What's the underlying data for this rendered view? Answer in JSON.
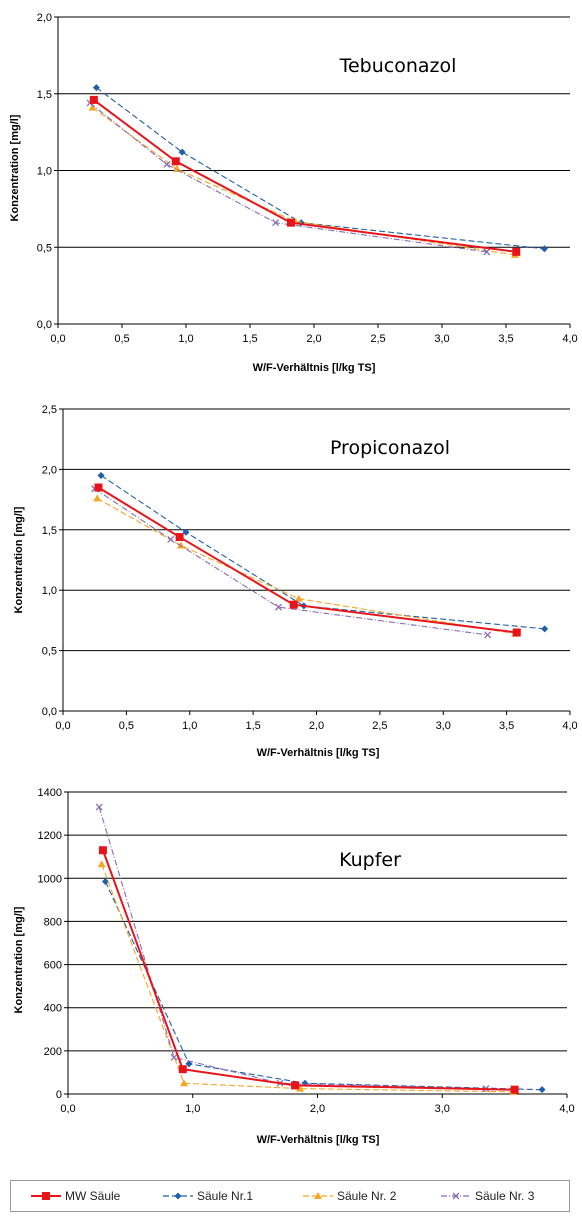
{
  "legend": [
    {
      "label": "MW Säule",
      "color": "#e8141b",
      "marker": "square",
      "dash": "solid"
    },
    {
      "label": "Säule Nr.1",
      "color": "#1f5fa8",
      "marker": "diamond",
      "dash": "dash"
    },
    {
      "label": "Säule Nr. 2",
      "color": "#f5a623",
      "marker": "triangle",
      "dash": "dash"
    },
    {
      "label": "Säule Nr. 3",
      "color": "#8a6bb5",
      "marker": "x",
      "dash": "dashdot"
    }
  ],
  "chart_data": [
    {
      "type": "line",
      "title": "Tebuconazol",
      "xlabel": "W/F-Verhältnis [l/kg TS]",
      "ylabel": "Konzentration  [mg/l]",
      "xlim": [
        0,
        4
      ],
      "ylim": [
        0,
        2
      ],
      "xticks": [
        "0,0",
        "0,5",
        "1,0",
        "1,5",
        "2,0",
        "2,5",
        "3,0",
        "3,5",
        "4,0"
      ],
      "yticks": [
        "0,0",
        "0,5",
        "1,0",
        "1,5",
        "2,0"
      ],
      "grid": true,
      "series": [
        {
          "name": "MW Säule",
          "x": [
            0.28,
            0.92,
            1.82,
            3.58
          ],
          "y": [
            1.46,
            1.06,
            0.66,
            0.47
          ]
        },
        {
          "name": "Säule Nr.1",
          "x": [
            0.3,
            0.97,
            1.9,
            3.8
          ],
          "y": [
            1.54,
            1.12,
            0.66,
            0.49
          ]
        },
        {
          "name": "Säule Nr. 2",
          "x": [
            0.27,
            0.93,
            1.85,
            3.57
          ],
          "y": [
            1.41,
            1.01,
            0.67,
            0.45
          ]
        },
        {
          "name": "Säule Nr. 3",
          "x": [
            0.25,
            0.85,
            1.7,
            3.35
          ],
          "y": [
            1.44,
            1.04,
            0.66,
            0.47
          ]
        }
      ]
    },
    {
      "type": "line",
      "title": "Propiconazol",
      "xlabel": "W/F-Verhältnis [l/kg TS]",
      "ylabel": "Konzentration [mg/l]",
      "xlim": [
        0,
        4
      ],
      "ylim": [
        0,
        2.5
      ],
      "xticks": [
        "0,0",
        "0,5",
        "1,0",
        "1,5",
        "2,0",
        "2,5",
        "3,0",
        "3,5",
        "4,0"
      ],
      "yticks": [
        "0,0",
        "0,5",
        "1,0",
        "1,5",
        "2,0",
        "2,5"
      ],
      "grid": true,
      "series": [
        {
          "name": "MW Säule",
          "x": [
            0.28,
            0.92,
            1.82,
            3.58
          ],
          "y": [
            1.85,
            1.44,
            0.88,
            0.65
          ]
        },
        {
          "name": "Säule Nr.1",
          "x": [
            0.3,
            0.97,
            1.9,
            3.8
          ],
          "y": [
            1.95,
            1.48,
            0.87,
            0.68
          ]
        },
        {
          "name": "Säule Nr. 2",
          "x": [
            0.27,
            0.93,
            1.86,
            3.57
          ],
          "y": [
            1.76,
            1.37,
            0.93,
            0.64
          ]
        },
        {
          "name": "Säule Nr. 3",
          "x": [
            0.25,
            0.85,
            1.7,
            3.35
          ],
          "y": [
            1.84,
            1.42,
            0.86,
            0.63
          ]
        }
      ]
    },
    {
      "type": "line",
      "title": "Kupfer",
      "xlabel": "W/F-Verhältnis [l/kg TS]",
      "ylabel": "Konzentration [mg/l]",
      "xlim": [
        0,
        4
      ],
      "ylim": [
        0,
        1400
      ],
      "xticks": [
        "0,0",
        "1,0",
        "2,0",
        "3,0",
        "4,0"
      ],
      "yticks": [
        "0",
        "200",
        "400",
        "600",
        "800",
        "1000",
        "1200",
        "1400"
      ],
      "grid": true,
      "series": [
        {
          "name": "MW Säule",
          "x": [
            0.28,
            0.92,
            1.82,
            3.58
          ],
          "y": [
            1130,
            115,
            40,
            20
          ]
        },
        {
          "name": "Säule Nr.1",
          "x": [
            0.3,
            0.97,
            1.9,
            3.8
          ],
          "y": [
            985,
            140,
            50,
            20
          ]
        },
        {
          "name": "Säule Nr. 2",
          "x": [
            0.27,
            0.93,
            1.86,
            3.57
          ],
          "y": [
            1065,
            50,
            25,
            10
          ]
        },
        {
          "name": "Säule Nr. 3",
          "x": [
            0.25,
            0.85,
            1.7,
            3.35
          ],
          "y": [
            1330,
            170,
            50,
            25
          ]
        }
      ]
    }
  ]
}
